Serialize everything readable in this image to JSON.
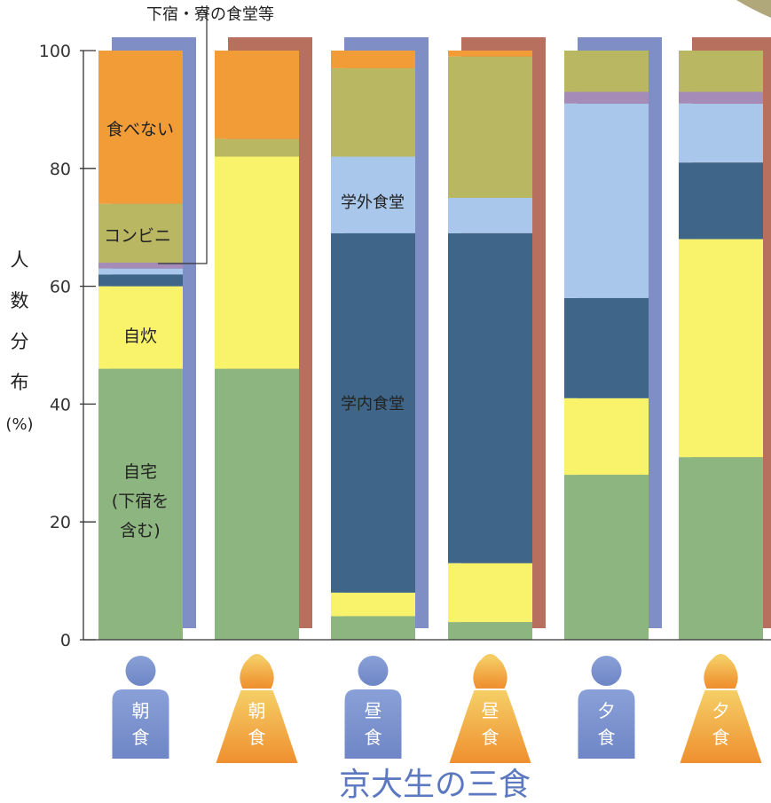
{
  "chart_data": {
    "type": "bar",
    "stacked": true,
    "title": "京大生の三食",
    "ylabel_chars": [
      "人",
      "数",
      "分",
      "布"
    ],
    "ylabel_unit": "(%)",
    "ylim": [
      0,
      100
    ],
    "yticks": [
      0,
      20,
      40,
      60,
      80,
      100
    ],
    "categories": [
      "朝食",
      "朝食",
      "昼食",
      "昼食",
      "夕食",
      "夕食"
    ],
    "person_labels": [
      [
        "朝",
        "食"
      ],
      [
        "朝",
        "食"
      ],
      [
        "昼",
        "食"
      ],
      [
        "昼",
        "食"
      ],
      [
        "夕",
        "食"
      ],
      [
        "夕",
        "食"
      ]
    ],
    "person_genders": [
      "male",
      "female",
      "male",
      "female",
      "male",
      "female"
    ],
    "series": [
      {
        "name": "自宅(下宿を含む)",
        "color": "#8db57f",
        "values": [
          46,
          46,
          4,
          3,
          28,
          31
        ]
      },
      {
        "name": "自炊",
        "color": "#f8f36a",
        "values": [
          14,
          36,
          4,
          10,
          13,
          37
        ]
      },
      {
        "name": "学内食堂",
        "color": "#3f6688",
        "values": [
          2,
          0,
          61,
          56,
          17,
          13
        ]
      },
      {
        "name": "学外食堂",
        "color": "#a9c7ea",
        "values": [
          1,
          0,
          13,
          6,
          33,
          10
        ]
      },
      {
        "name": "下宿・寮の食堂等",
        "color": "#a48bb8",
        "values": [
          1,
          0,
          0,
          0,
          2,
          2
        ]
      },
      {
        "name": "コンビニ",
        "color": "#b9b762",
        "values": [
          10,
          3,
          15,
          24,
          7,
          7
        ]
      },
      {
        "name": "食べない",
        "color": "#f29c38",
        "values": [
          26,
          15,
          3,
          1,
          0,
          0
        ]
      }
    ],
    "annotations": {
      "eat_none": "食べない",
      "convenience": "コンビニ",
      "self_cook": "自炊",
      "home_line1": "自宅",
      "home_line2": "(下宿を",
      "home_line3": "含む)",
      "dorm": "下宿・寮の食堂等",
      "outside_cafeteria": "学外食堂",
      "campus_cafeteria": "学内食堂"
    },
    "colors": {
      "male_back": "#7f8fc6",
      "female_back": "#b7705e",
      "male_figure": "#7f95cf",
      "female_figure_top": "#f4c35a",
      "female_figure_bottom": "#f09431",
      "title": "#5b78c0"
    }
  }
}
